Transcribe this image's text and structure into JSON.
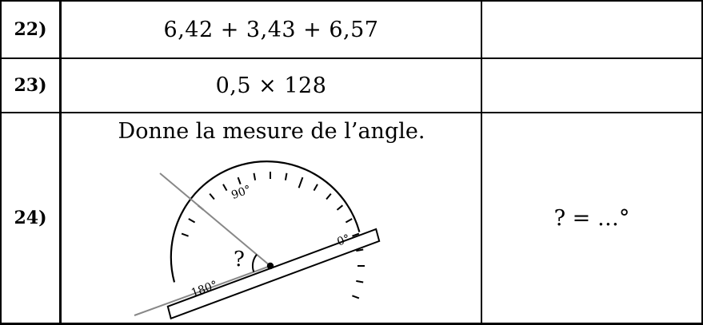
{
  "rows": [
    {
      "number": "22)",
      "expression": "6,42 + 3,43 + 6,57",
      "answer": ""
    },
    {
      "number": "23)",
      "expression": "0,5 × 128",
      "answer": ""
    },
    {
      "number": "24)",
      "prompt": "Donne la mesure de l’angle.",
      "answer": "? = …°",
      "figure": {
        "type": "protractor",
        "labels": {
          "zero": "0°",
          "ninety": "90°",
          "one_eighty": "180°",
          "angle_mark": "?"
        }
      }
    }
  ]
}
